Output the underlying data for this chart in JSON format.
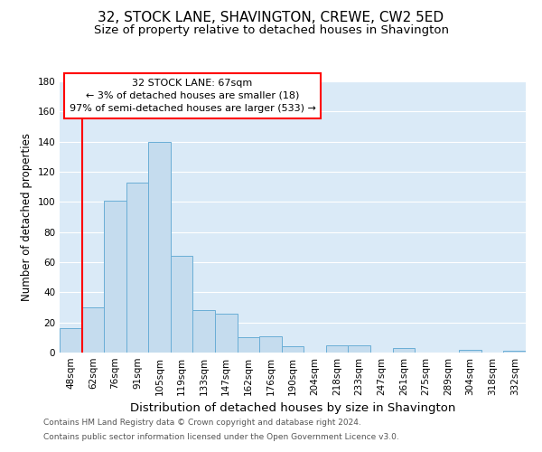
{
  "title": "32, STOCK LANE, SHAVINGTON, CREWE, CW2 5ED",
  "subtitle": "Size of property relative to detached houses in Shavington",
  "xlabel": "Distribution of detached houses by size in Shavington",
  "ylabel": "Number of detached properties",
  "bin_labels": [
    "48sqm",
    "62sqm",
    "76sqm",
    "91sqm",
    "105sqm",
    "119sqm",
    "133sqm",
    "147sqm",
    "162sqm",
    "176sqm",
    "190sqm",
    "204sqm",
    "218sqm",
    "233sqm",
    "247sqm",
    "261sqm",
    "275sqm",
    "289sqm",
    "304sqm",
    "318sqm",
    "332sqm"
  ],
  "bar_heights": [
    16,
    30,
    101,
    113,
    140,
    64,
    28,
    26,
    10,
    11,
    4,
    0,
    5,
    5,
    0,
    3,
    0,
    0,
    2,
    0,
    1
  ],
  "bar_color": "#c5dcee",
  "bar_edge_color": "#6aaed6",
  "ylim": [
    0,
    180
  ],
  "yticks": [
    0,
    20,
    40,
    60,
    80,
    100,
    120,
    140,
    160,
    180
  ],
  "red_line_x": 1,
  "annotation_title": "32 STOCK LANE: 67sqm",
  "annotation_line1": "← 3% of detached houses are smaller (18)",
  "annotation_line2": "97% of semi-detached houses are larger (533) →",
  "footnote1": "Contains HM Land Registry data © Crown copyright and database right 2024.",
  "footnote2": "Contains public sector information licensed under the Open Government Licence v3.0.",
  "title_fontsize": 11,
  "subtitle_fontsize": 9.5,
  "xlabel_fontsize": 9.5,
  "ylabel_fontsize": 8.5,
  "tick_fontsize": 7.5,
  "annotation_fontsize": 8,
  "footnote_fontsize": 6.5
}
